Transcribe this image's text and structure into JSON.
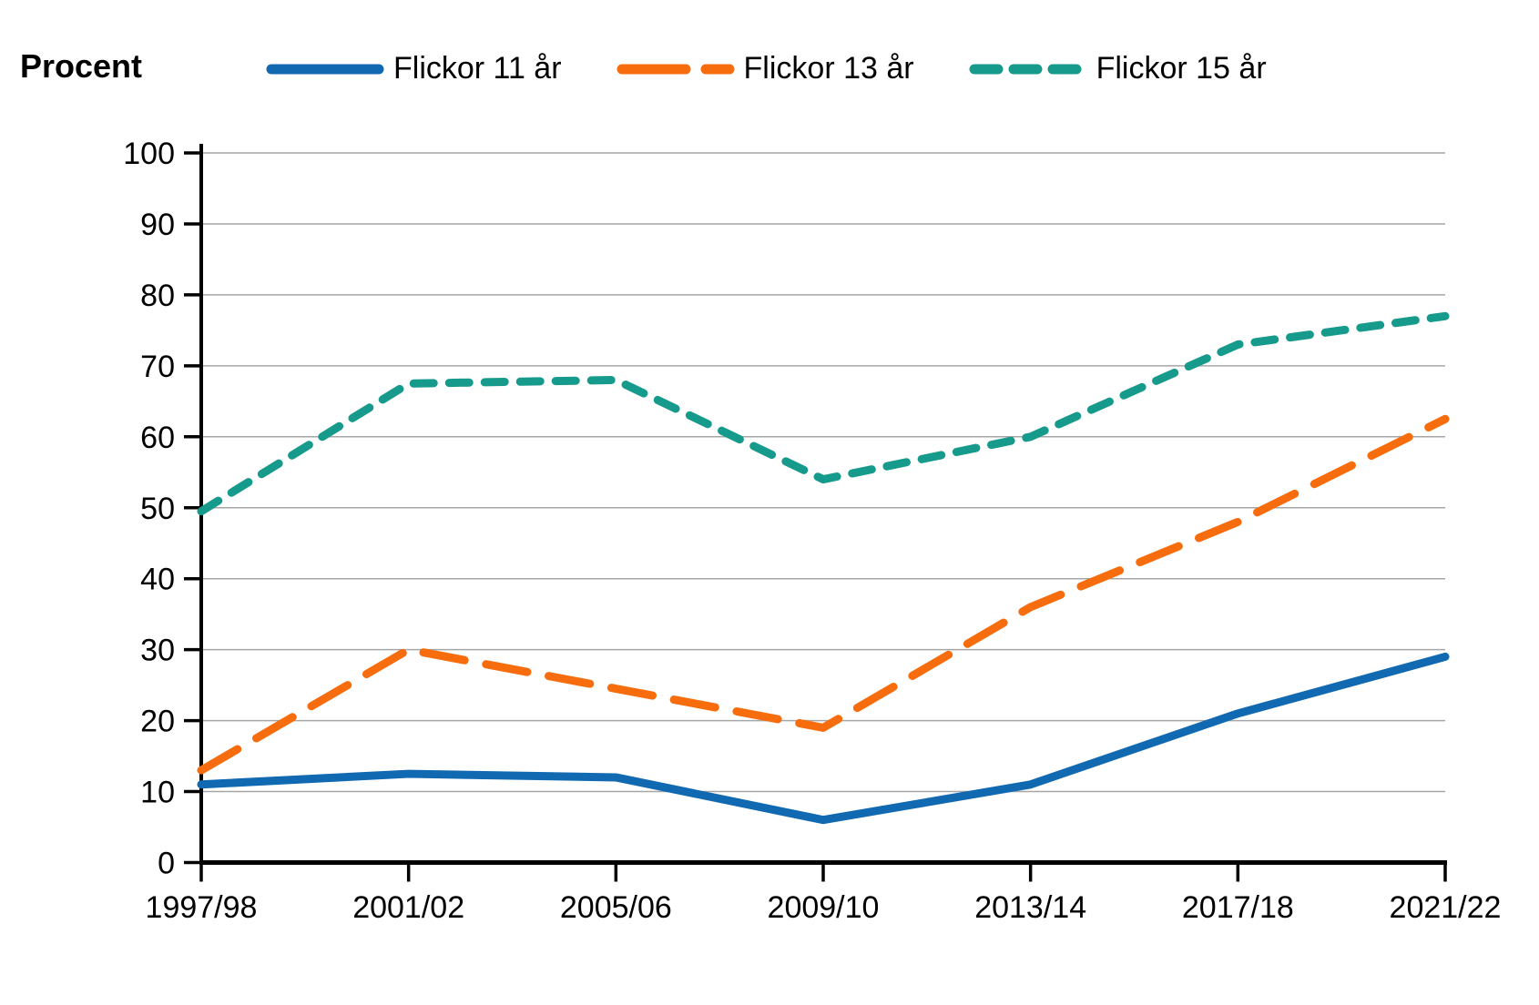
{
  "y_axis_title": "Procent",
  "legend": [
    {
      "label": "Flickor 11 år",
      "color": "#1169b2",
      "style": "solid"
    },
    {
      "label": "Flickor 13 år",
      "color": "#f76d0e",
      "style": "long-dash"
    },
    {
      "label": "Flickor 15 år",
      "color": "#169a8b",
      "style": "short-dash"
    }
  ],
  "chart_data": {
    "type": "line",
    "title": "",
    "ylabel": "Procent",
    "xlabel": "",
    "categories": [
      "1997/98",
      "2001/02",
      "2005/06",
      "2009/10",
      "2013/14",
      "2017/18",
      "2021/22"
    ],
    "series": [
      {
        "name": "Flickor 11 år",
        "color": "#1169b2",
        "dash": "solid",
        "values": [
          11,
          12.5,
          12,
          6,
          11,
          21,
          29
        ]
      },
      {
        "name": "Flickor 13 år",
        "color": "#f76d0e",
        "dash": "long-dash",
        "values": [
          13,
          30,
          24.5,
          19,
          36,
          48,
          62.5
        ]
      },
      {
        "name": "Flickor 15 år",
        "color": "#169a8b",
        "dash": "short-dash",
        "values": [
          49.5,
          67.5,
          68,
          54,
          60,
          73,
          77
        ]
      }
    ],
    "ylim": [
      0,
      100
    ],
    "yticks": [
      0,
      10,
      20,
      30,
      40,
      50,
      60,
      70,
      80,
      90,
      100
    ],
    "grid": "horizontal",
    "gridline_color": "#a6a6a6",
    "axis_color": "#000000",
    "legend_position": "top"
  }
}
